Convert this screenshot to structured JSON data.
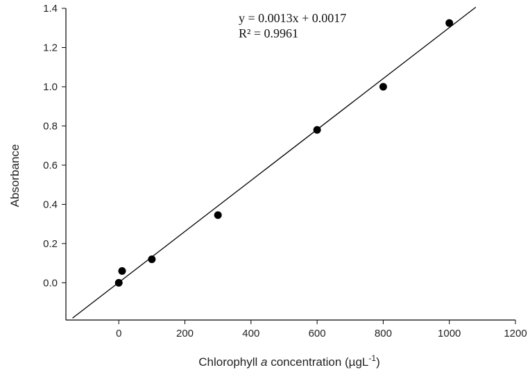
{
  "chart_data": {
    "type": "scatter",
    "xlabel_parts": {
      "pre": "Chlorophyll ",
      "italic": "a",
      "post": " concentration (µgL",
      "sup": "-1",
      "close": ")"
    },
    "ylabel": "Absorbance",
    "xlim": [
      -160,
      1200
    ],
    "ylim": [
      -0.19,
      1.4
    ],
    "xticks": [
      0,
      200,
      400,
      600,
      800,
      1000,
      1200
    ],
    "yticks": [
      0.0,
      0.2,
      0.4,
      0.6,
      0.8,
      1.0,
      1.2,
      1.4
    ],
    "xtick_labels": [
      "0",
      "200",
      "400",
      "600",
      "800",
      "1000",
      "1200"
    ],
    "ytick_labels": [
      "0.0",
      "0.2",
      "0.4",
      "0.6",
      "0.8",
      "1.0",
      "1.2",
      "1.4"
    ],
    "grid": false,
    "points": [
      {
        "x": 0,
        "y": 0.0
      },
      {
        "x": 10,
        "y": 0.06
      },
      {
        "x": 100,
        "y": 0.12
      },
      {
        "x": 300,
        "y": 0.345
      },
      {
        "x": 600,
        "y": 0.78
      },
      {
        "x": 800,
        "y": 1.0
      },
      {
        "x": 1000,
        "y": 1.325
      }
    ],
    "fit": {
      "slope": 0.0013,
      "intercept": 0.0017,
      "x_range": [
        -140,
        1080
      ]
    },
    "annotations": {
      "equation": "y = 0.0013x + 0.0017",
      "r2_label": "R² = 0.9961"
    }
  }
}
